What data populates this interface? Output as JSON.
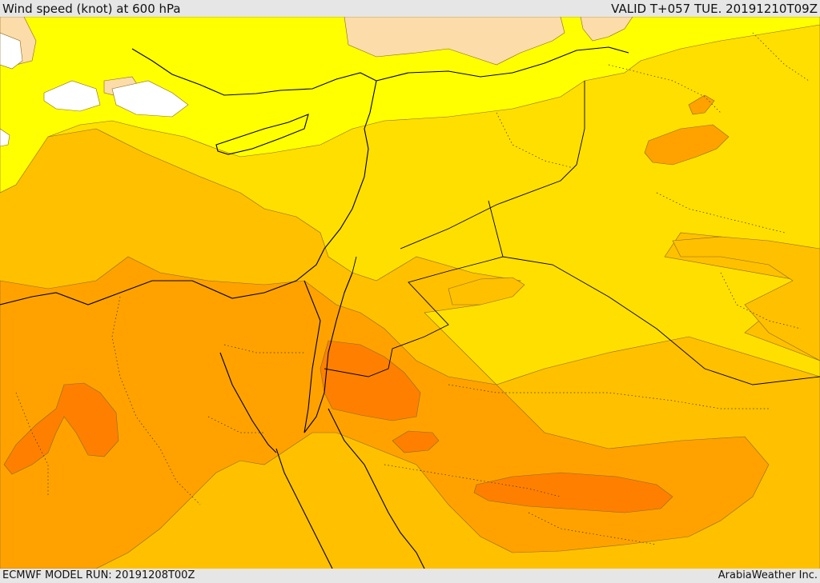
{
  "header": {
    "title": "Wind speed (knot) at 600 hPa",
    "valid": "VALID T+057 TUE. 20191210T09Z"
  },
  "footer": {
    "model_run": "ECMWF MODEL RUN: 20191208T00Z",
    "brand": "ArabiaWeather Inc."
  },
  "colors": {
    "white": "#ffffff",
    "light_peach": "#fcdca8",
    "yellow": "#ffff00",
    "yellow_gold": "#ffdf00",
    "gold": "#ffc000",
    "orange_light": "#ffa200",
    "orange": "#ff8000",
    "frame": "#e6e6e6"
  }
}
